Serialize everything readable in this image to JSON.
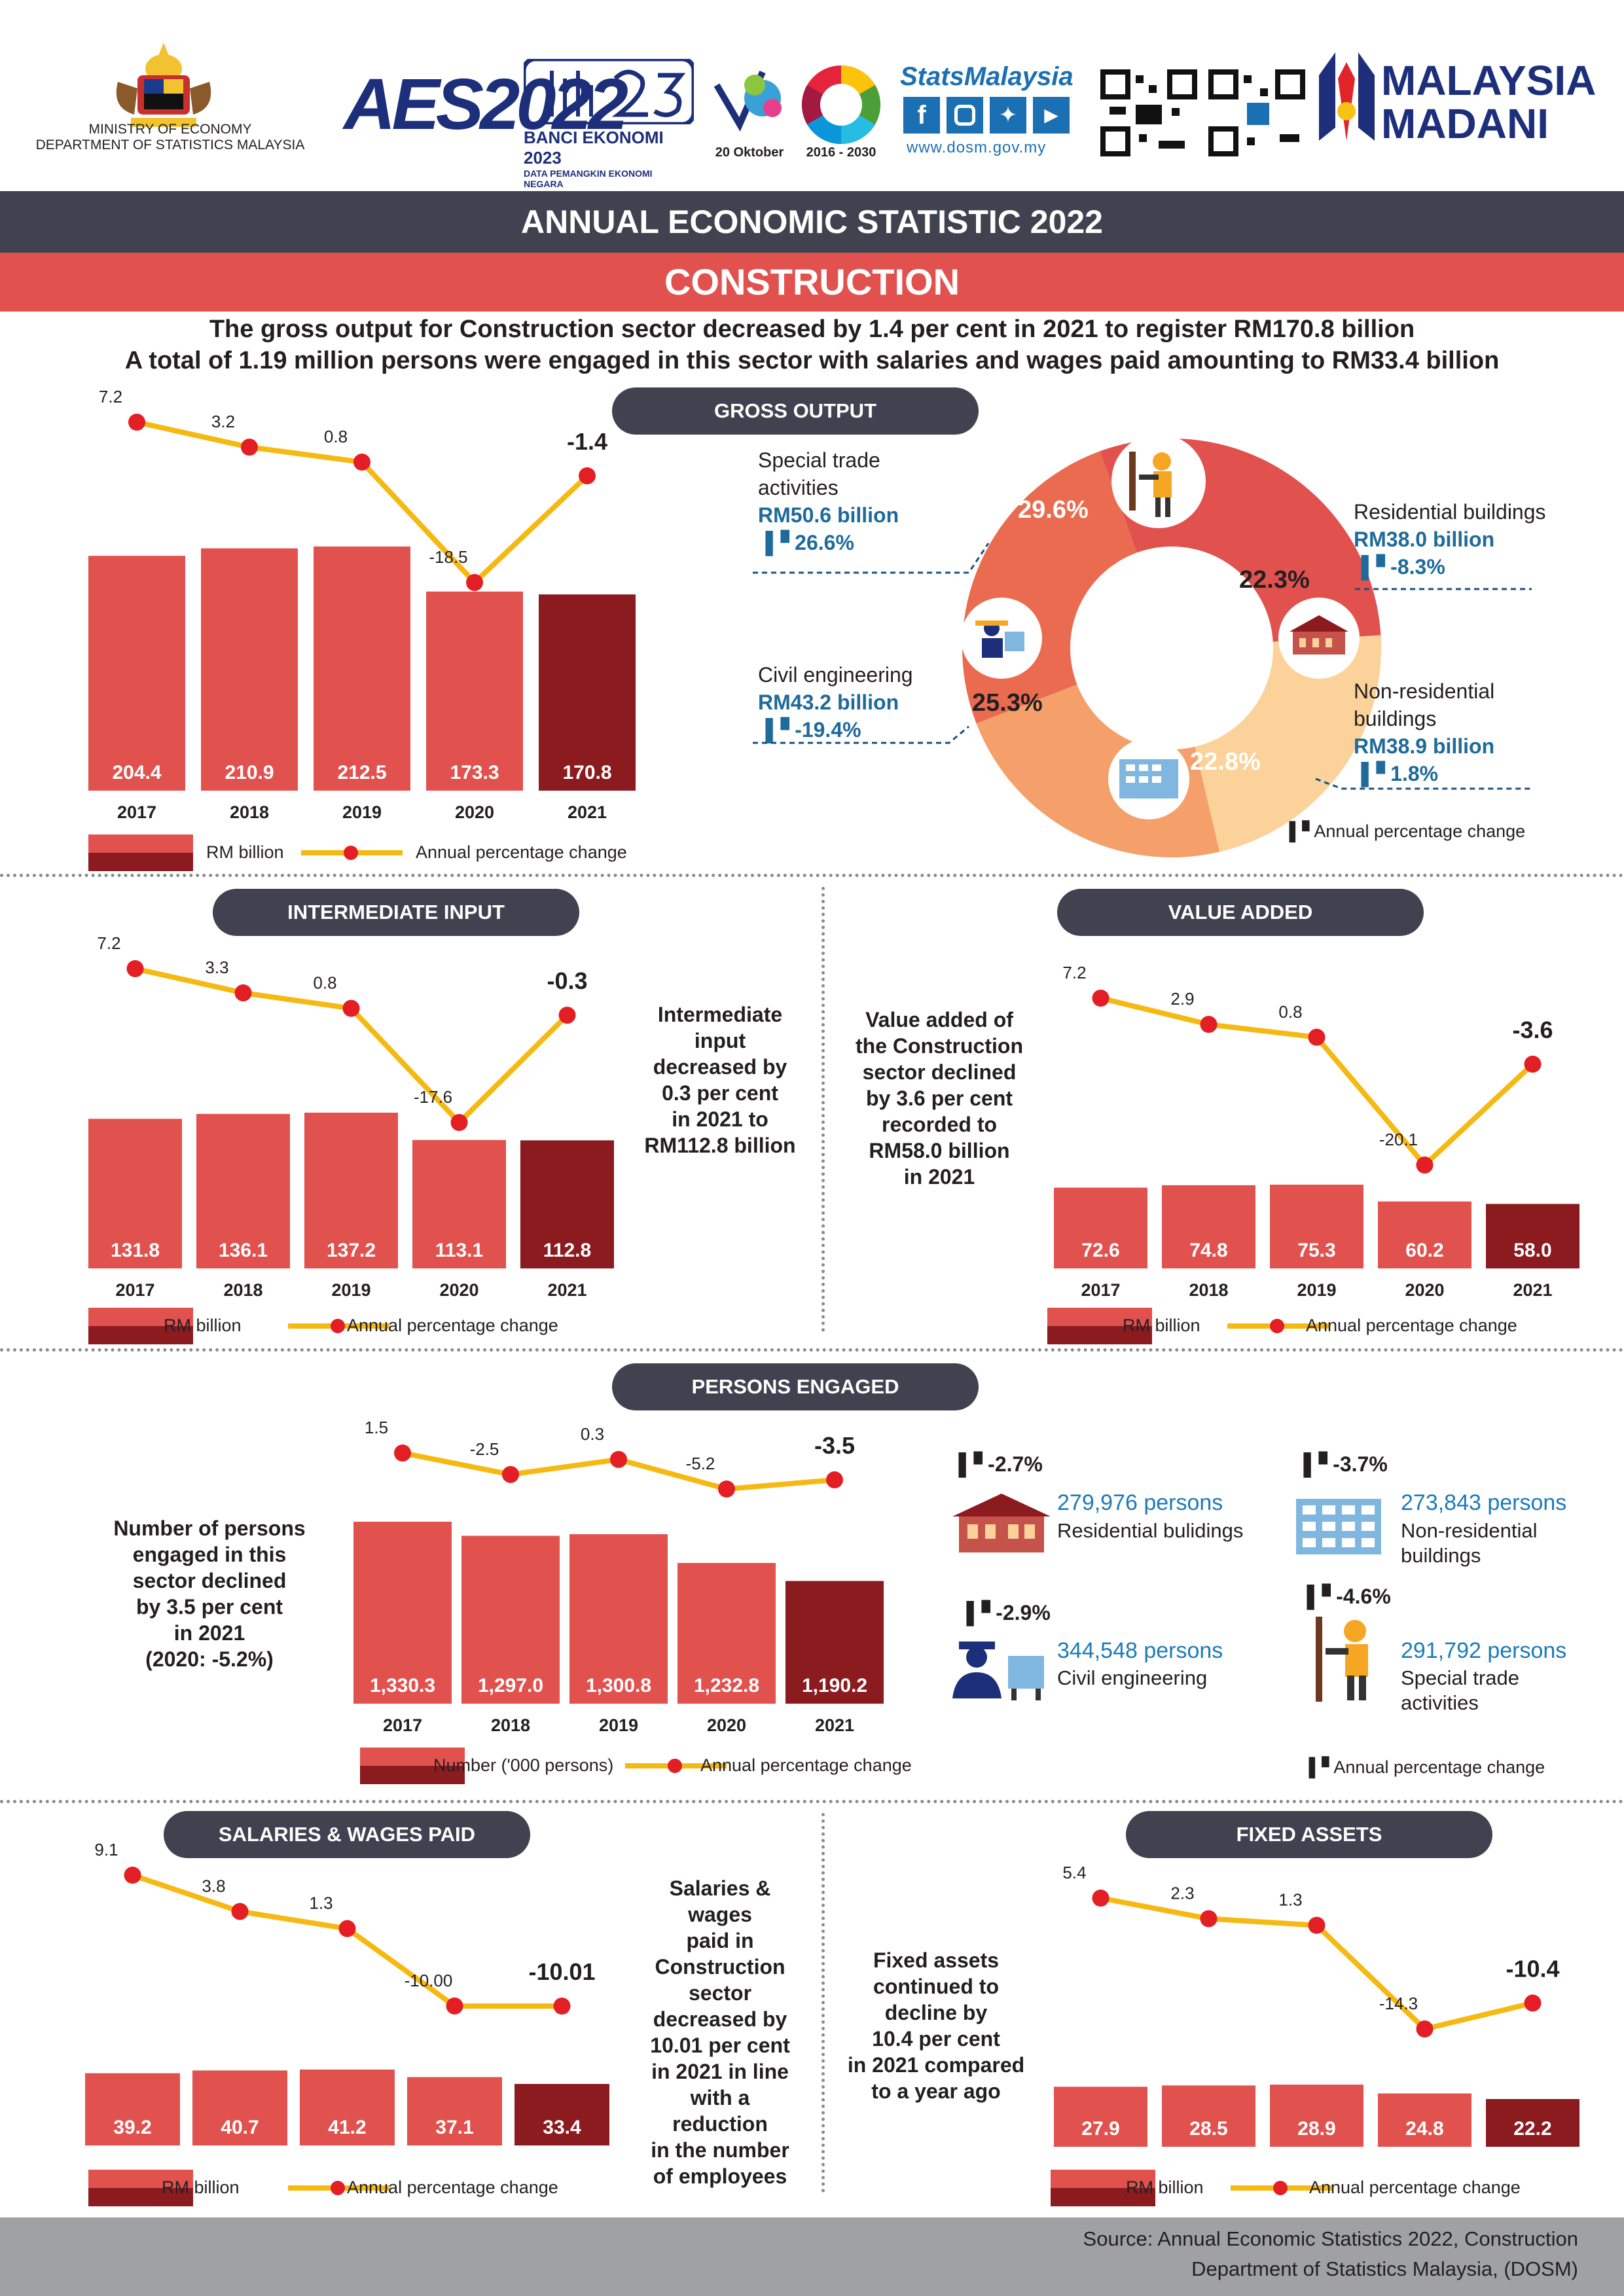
{
  "header": {
    "ministry_line1": "MINISTRY OF ECONOMY",
    "ministry_line2": "DEPARTMENT OF STATISTICS MALAYSIA",
    "aes_logo": "AES2022",
    "banci_title": "BANCI EKONOMI 2023",
    "banci_sub": "DATA PEMANGKIN EKONOMI NEGARA",
    "wsd_date": "20 Oktober",
    "sdg_years": "2016 - 2030",
    "stats_brand": "StatsMalaysia",
    "website": "www.dosm.gov.my",
    "madani_line1": "MALAYSIA",
    "madani_line2": "MADANI"
  },
  "title": "ANNUAL ECONOMIC STATISTIC 2022",
  "subtitle": "CONSTRUCTION",
  "headline1": "The gross output for Construction sector decreased by 1.4 per cent in 2021 to register RM170.8 billion",
  "headline2": "A total of 1.19 million persons were engaged in this sector with salaries and wages paid amounting to RM33.4 billion",
  "sections": {
    "gross_output": "GROSS OUTPUT",
    "intermediate_input": "INTERMEDIATE INPUT",
    "value_added": "VALUE ADDED",
    "persons_engaged": "PERSONS ENGAGED",
    "salaries": "SALARIES & WAGES PAID",
    "fixed_assets": "FIXED ASSETS"
  },
  "legend": {
    "rm_billion": "RM billion",
    "number_persons": "Number ('000 persons)",
    "annual_change": "Annual percentage change"
  },
  "descriptions": {
    "intermediate": [
      "Intermediate",
      "input",
      "decreased by",
      "0.3 per cent",
      "in 2021 to",
      "RM112.8 billion"
    ],
    "value_added": [
      "Value added of",
      "the  Construction",
      "sector declined",
      "by 3.6 per cent",
      "recorded to",
      "RM58.0 billion",
      "in 2021"
    ],
    "persons": [
      "Number of persons",
      "engaged in this",
      "sector declined",
      "by 3.5 per cent",
      "in 2021",
      "(2020: -5.2%)"
    ],
    "salaries": [
      "Salaries &",
      "wages",
      "paid in",
      "Construction",
      "sector",
      "decreased by",
      "10.01 per cent",
      "in 2021 in line",
      "with a",
      "reduction",
      "in the number",
      "of employees"
    ],
    "fixed_assets": [
      "Fixed assets",
      "continued to",
      "decline by",
      "10.4 per cent",
      "in 2021 compared",
      "to a year ago"
    ]
  },
  "chart_data": [
    {
      "id": "gross_output",
      "type": "bar",
      "categories": [
        "2017",
        "2018",
        "2019",
        "2020",
        "2021"
      ],
      "values": [
        204.4,
        210.9,
        212.5,
        173.3,
        170.8
      ],
      "value_labels": [
        "204.4",
        "210.9",
        "212.5",
        "173.3",
        "170.8"
      ],
      "line_values": [
        7.2,
        3.2,
        0.8,
        -18.5,
        -1.4
      ],
      "line_labels": [
        "7.2",
        "3.2",
        "0.8",
        "-18.5",
        "-1.4"
      ],
      "unit": "RM billion"
    },
    {
      "id": "intermediate_input",
      "type": "bar",
      "categories": [
        "2017",
        "2018",
        "2019",
        "2020",
        "2021"
      ],
      "values": [
        131.8,
        136.1,
        137.2,
        113.1,
        112.8
      ],
      "value_labels": [
        "131.8",
        "136.1",
        "137.2",
        "113.1",
        "112.8"
      ],
      "line_values": [
        7.2,
        3.3,
        0.8,
        -17.6,
        -0.3
      ],
      "line_labels": [
        "7.2",
        "3.3",
        "0.8",
        "-17.6",
        "-0.3"
      ],
      "unit": "RM billion"
    },
    {
      "id": "value_added",
      "type": "bar",
      "categories": [
        "2017",
        "2018",
        "2019",
        "2020",
        "2021"
      ],
      "values": [
        72.6,
        74.8,
        75.3,
        60.2,
        58.0
      ],
      "value_labels": [
        "72.6",
        "74.8",
        "75.3",
        "60.2",
        "58.0"
      ],
      "line_values": [
        7.2,
        2.9,
        0.8,
        -20.1,
        -3.6
      ],
      "line_labels": [
        "7.2",
        "2.9",
        "0.8",
        "-20.1",
        "-3.6"
      ],
      "unit": "RM billion"
    },
    {
      "id": "persons_engaged",
      "type": "bar",
      "categories": [
        "2017",
        "2018",
        "2019",
        "2020",
        "2021"
      ],
      "values": [
        1330.3,
        1297.0,
        1300.8,
        1232.8,
        1190.2
      ],
      "value_labels": [
        "1,330.3",
        "1,297.0",
        "1,300.8",
        "1,232.8",
        "1,190.2"
      ],
      "line_values": [
        1.5,
        -2.5,
        0.3,
        -5.2,
        -3.5
      ],
      "line_labels": [
        "1.5",
        "-2.5",
        "0.3",
        "-5.2",
        "-3.5"
      ],
      "unit": "Number ('000 persons)"
    },
    {
      "id": "salaries",
      "type": "bar",
      "categories": [
        "2017",
        "2018",
        "2019",
        "2020",
        "2021"
      ],
      "values": [
        39.2,
        40.7,
        41.2,
        37.1,
        33.4
      ],
      "value_labels": [
        "39.2",
        "40.7",
        "41.2",
        "37.1",
        "33.4"
      ],
      "line_values": [
        9.1,
        3.8,
        1.3,
        -10.0,
        -10.01
      ],
      "line_labels": [
        "9.1",
        "3.8",
        "1.3",
        "-10.00",
        "-10.01"
      ],
      "unit": "RM billion"
    },
    {
      "id": "fixed_assets",
      "type": "bar",
      "categories": [
        "2017",
        "2018",
        "2019",
        "2020",
        "2021"
      ],
      "values": [
        27.9,
        28.5,
        28.9,
        24.8,
        22.2
      ],
      "value_labels": [
        "27.9",
        "28.5",
        "28.9",
        "24.8",
        "22.2"
      ],
      "line_values": [
        5.4,
        2.3,
        1.3,
        -14.3,
        -10.4
      ],
      "line_labels": [
        "5.4",
        "2.3",
        "1.3",
        "-14.3",
        "-10.4"
      ],
      "unit": "RM billion"
    },
    {
      "id": "gross_output_share",
      "type": "pie",
      "slices": [
        {
          "name": "Special trade activities",
          "share": 29.6,
          "share_label": "29.6%",
          "value_label": "RM50.6 billion",
          "change_label": "26.6%",
          "color": "#e1524f"
        },
        {
          "name": "Residential buildings",
          "share": 22.3,
          "share_label": "22.3%",
          "value_label": "RM38.0 billion",
          "change_label": "-8.3%",
          "color": "#fbd29a"
        },
        {
          "name": "Non-residential buildings",
          "share": 22.8,
          "share_label": "22.8%",
          "value_label": "RM38.9 billion",
          "change_label": "1.8%",
          "color": "#f5a06a"
        },
        {
          "name": "Civil engineering",
          "share": 25.3,
          "share_label": "25.3%",
          "value_label": "RM43.2 billion",
          "change_label": "-19.4%",
          "color": "#ea6b4f"
        }
      ],
      "legend": "Annual percentage change"
    }
  ],
  "pie_labels": {
    "special_line1": "Special trade",
    "special_line2": "activities",
    "residential": "Residential buildings",
    "nonres_line1": "Non-residential",
    "nonres_line2": "buildings",
    "civil": "Civil engineering"
  },
  "persons_breakdown": [
    {
      "change": "-2.7%",
      "persons": "279,976 persons",
      "cat1": "Residential bulidings",
      "cat2": "",
      "icon": "house-icon"
    },
    {
      "change": "-3.7%",
      "persons": "273,843 persons",
      "cat1": "Non-residential",
      "cat2": "buildings",
      "icon": "office-building-icon"
    },
    {
      "change": "-2.9%",
      "persons": "344,548 persons",
      "cat1": "Civil engineering",
      "cat2": "",
      "icon": "engineer-icon"
    },
    {
      "change": "-4.6%",
      "persons": "291,792 persons",
      "cat1": "Special trade",
      "cat2": "activities",
      "icon": "worker-drill-icon"
    }
  ],
  "footer": {
    "source1": "Source: Annual Economic Statistics 2022, Construction",
    "source2": "Department of Statistics Malaysia, (DOSM)"
  },
  "colors": {
    "bar": "#e1524f",
    "bar_last": "#8b1b1f",
    "line": "#f6b912",
    "dot": "#e31e24",
    "dark": "#414250"
  }
}
